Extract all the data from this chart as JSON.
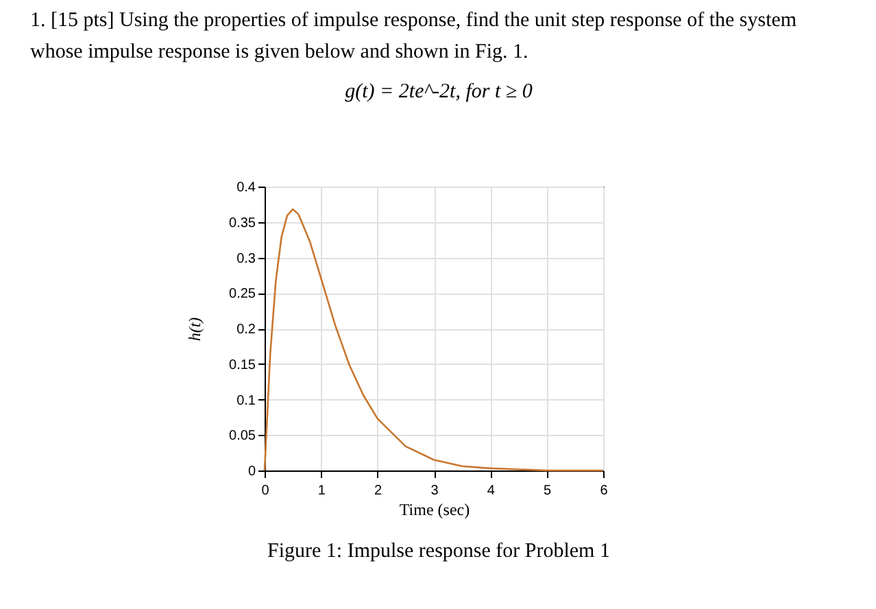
{
  "chart_data": {
    "type": "line",
    "title": "1. [15 pts] Using the properties of impulse response, find the unit step response of the system whose impulse response is given below and shown in Fig. 1.",
    "subtitle": "g(t) = 2te^-2t, for t ≥ 0",
    "xlabel": "Time (sec)",
    "ylabel": "h(t)",
    "annotations": [
      "Figure 1: Impulse response for Problem 1"
    ],
    "x": [
      0,
      0.1,
      0.2,
      0.3,
      0.4,
      0.5,
      0.6,
      0.8,
      1.0,
      1.25,
      1.5,
      1.75,
      2,
      2.5,
      3,
      3.5,
      4,
      5,
      6
    ],
    "series": [
      {
        "color": "#c8772f",
        "values": [
          0,
          0.164,
          0.268,
          0.329,
          0.359,
          0.368,
          0.361,
          0.323,
          0.271,
          0.205,
          0.149,
          0.106,
          0.073,
          0.034,
          0.015,
          0.006,
          0.003,
          0.0,
          0.0
        ]
      }
    ],
    "xlim": [
      0,
      6
    ],
    "xticks": [
      0,
      1,
      2,
      3,
      4,
      5,
      6
    ],
    "ylim": [
      0,
      0.4
    ],
    "yticks": [
      0,
      0.05,
      0.1,
      0.15,
      0.2,
      0.25,
      0.3,
      0.35,
      0.4
    ],
    "grid": true,
    "marker": "none",
    "line_style": "solid"
  }
}
